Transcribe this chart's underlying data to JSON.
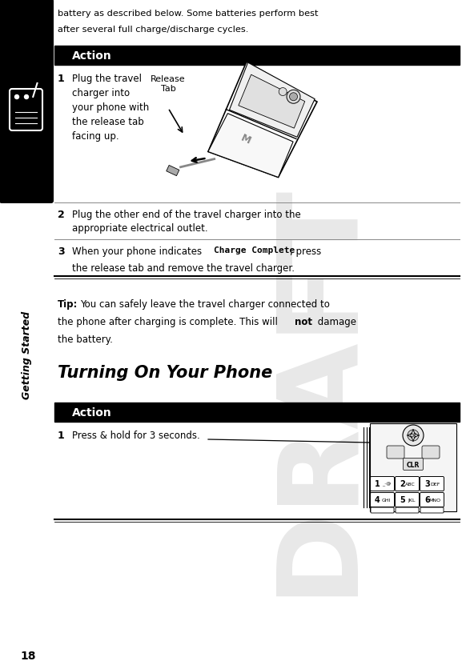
{
  "page_width": 5.82,
  "page_height": 8.37,
  "bg_color": "#ffffff",
  "sidebar_color": "#000000",
  "sidebar_label": "Getting Started",
  "page_number": "18",
  "header_text_line1": "battery as described below. Some batteries perform best",
  "header_text_line2": "after several full charge/discharge cycles.",
  "action_header_bg": "#000000",
  "action_header_text": "Action",
  "action_header_color": "#ffffff",
  "tip_bold": "Tip:",
  "section_title": "Turning On Your Phone",
  "draft_color": "#cccccc",
  "release_tab_label": "Release\nTab"
}
